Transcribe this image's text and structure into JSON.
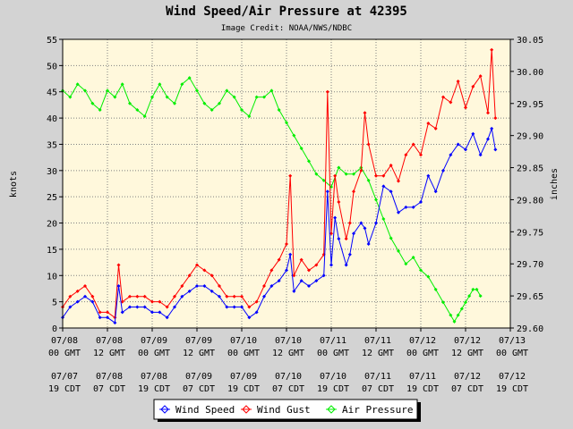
{
  "chart_data": {
    "type": "line",
    "title": "Wind Speed/Air Pressure at 42395",
    "subtitle": "Image Credit: NOAA/NWS/NDBC",
    "ylabel_left": "knots",
    "ylabel_right": "inches",
    "ylim_left": [
      0,
      55
    ],
    "ylim_right": [
      29.6,
      30.05
    ],
    "y_ticks_left": [
      "0",
      "5",
      "10",
      "15",
      "20",
      "25",
      "30",
      "35",
      "40",
      "45",
      "50",
      "55"
    ],
    "y_ticks_right": [
      "29.60",
      "29.65",
      "29.70",
      "29.75",
      "29.80",
      "29.85",
      "29.90",
      "29.95",
      "30.00",
      "30.05"
    ],
    "x_unit": "hours since 07/08 00 GMT",
    "xlim": [
      0,
      120
    ],
    "x_ticks_gmt": [
      {
        "date": "07/08",
        "time": "00 GMT"
      },
      {
        "date": "07/08",
        "time": "12 GMT"
      },
      {
        "date": "07/09",
        "time": "00 GMT"
      },
      {
        "date": "07/09",
        "time": "12 GMT"
      },
      {
        "date": "07/10",
        "time": "00 GMT"
      },
      {
        "date": "07/10",
        "time": "12 GMT"
      },
      {
        "date": "07/11",
        "time": "00 GMT"
      },
      {
        "date": "07/11",
        "time": "12 GMT"
      },
      {
        "date": "07/12",
        "time": "00 GMT"
      },
      {
        "date": "07/12",
        "time": "12 GMT"
      },
      {
        "date": "07/13",
        "time": "00 GMT"
      }
    ],
    "x_ticks_local": [
      {
        "date": "07/07",
        "time": "19 CDT"
      },
      {
        "date": "07/08",
        "time": "07 CDT"
      },
      {
        "date": "07/08",
        "time": "19 CDT"
      },
      {
        "date": "07/09",
        "time": "07 CDT"
      },
      {
        "date": "07/09",
        "time": "19 CDT"
      },
      {
        "date": "07/10",
        "time": "07 CDT"
      },
      {
        "date": "07/10",
        "time": "19 CDT"
      },
      {
        "date": "07/11",
        "time": "07 CDT"
      },
      {
        "date": "07/11",
        "time": "19 CDT"
      },
      {
        "date": "07/12",
        "time": "07 CDT"
      },
      {
        "date": "07/12",
        "time": "19 CDT"
      }
    ],
    "legend_position": "bottom",
    "grid": true,
    "series": [
      {
        "name": "Wind Speed",
        "axis": "left",
        "color": "#0000ff",
        "x": [
          0,
          2,
          4,
          6,
          8,
          10,
          12,
          14,
          15,
          16,
          18,
          20,
          22,
          24,
          26,
          28,
          30,
          32,
          34,
          36,
          38,
          40,
          42,
          44,
          46,
          48,
          50,
          52,
          54,
          56,
          58,
          60,
          61,
          62,
          64,
          66,
          68,
          70,
          71,
          72,
          73,
          74,
          76,
          77,
          78,
          80,
          81,
          82,
          84,
          86,
          88,
          90,
          92,
          94,
          96,
          98,
          100,
          102,
          104,
          106,
          108,
          110,
          112,
          114,
          115,
          116
        ],
        "y": [
          2,
          4,
          5,
          6,
          5,
          2,
          2,
          1,
          8,
          3,
          4,
          4,
          4,
          3,
          3,
          2,
          4,
          6,
          7,
          8,
          8,
          7,
          6,
          4,
          4,
          4,
          2,
          3,
          6,
          8,
          9,
          11,
          14,
          7,
          9,
          8,
          9,
          10,
          26,
          12,
          21,
          17,
          12,
          14,
          18,
          20,
          19,
          16,
          20,
          27,
          26,
          22,
          23,
          23,
          24,
          29,
          26,
          30,
          33,
          35,
          34,
          37,
          33,
          36,
          38,
          34
        ]
      },
      {
        "name": "Wind Gust",
        "axis": "left",
        "color": "#ff0000",
        "x": [
          0,
          2,
          4,
          6,
          8,
          10,
          12,
          14,
          15,
          16,
          18,
          20,
          22,
          24,
          26,
          28,
          30,
          32,
          34,
          36,
          38,
          40,
          42,
          44,
          46,
          48,
          50,
          52,
          54,
          56,
          58,
          60,
          61,
          62,
          64,
          66,
          68,
          70,
          71,
          72,
          73,
          74,
          76,
          77,
          78,
          80,
          81,
          82,
          84,
          86,
          88,
          90,
          92,
          94,
          96,
          98,
          100,
          102,
          104,
          106,
          108,
          110,
          112,
          114,
          115,
          116
        ],
        "y": [
          4,
          6,
          7,
          8,
          6,
          3,
          3,
          2,
          12,
          5,
          6,
          6,
          6,
          5,
          5,
          4,
          6,
          8,
          10,
          12,
          11,
          10,
          8,
          6,
          6,
          6,
          4,
          5,
          8,
          11,
          13,
          16,
          29,
          10,
          13,
          11,
          12,
          14,
          45,
          18,
          29,
          24,
          17,
          20,
          26,
          30,
          41,
          35,
          29,
          29,
          31,
          28,
          33,
          35,
          33,
          39,
          38,
          44,
          43,
          47,
          42,
          46,
          48,
          41,
          53,
          40
        ]
      },
      {
        "name": "Air Pressure",
        "axis": "right",
        "color": "#00ee00",
        "x": [
          0,
          2,
          4,
          6,
          8,
          10,
          12,
          14,
          16,
          18,
          20,
          22,
          24,
          26,
          28,
          30,
          32,
          34,
          36,
          38,
          40,
          42,
          44,
          46,
          48,
          50,
          52,
          54,
          56,
          58,
          60,
          62,
          64,
          66,
          68,
          70,
          72,
          74,
          76,
          78,
          80,
          82,
          84,
          86,
          88,
          90,
          92,
          94,
          96,
          98,
          100,
          102,
          104,
          105,
          106,
          107,
          108,
          109,
          110,
          111,
          112
        ],
        "y": [
          29.97,
          29.96,
          29.98,
          29.97,
          29.95,
          29.94,
          29.97,
          29.96,
          29.98,
          29.95,
          29.94,
          29.93,
          29.96,
          29.98,
          29.96,
          29.95,
          29.98,
          29.99,
          29.97,
          29.95,
          29.94,
          29.95,
          29.97,
          29.96,
          29.94,
          29.93,
          29.96,
          29.96,
          29.97,
          29.94,
          29.92,
          29.9,
          29.88,
          29.86,
          29.84,
          29.83,
          29.82,
          29.85,
          29.84,
          29.84,
          29.85,
          29.83,
          29.8,
          29.77,
          29.74,
          29.72,
          29.7,
          29.71,
          29.69,
          29.68,
          29.66,
          29.64,
          29.62,
          29.61,
          29.62,
          29.63,
          29.64,
          29.65,
          29.66,
          29.66,
          29.65
        ]
      }
    ]
  },
  "legend": [
    {
      "label": "Wind Speed",
      "color": "#0000ff",
      "marker": "diamond"
    },
    {
      "label": "Wind Gust",
      "color": "#ff0000",
      "marker": "diamond"
    },
    {
      "label": "Air Pressure",
      "color": "#00ee00",
      "marker": "diamond"
    }
  ],
  "colors": {
    "background": "#d3d3d3",
    "plot_area": "#fff8dc",
    "grid": "#808080"
  }
}
